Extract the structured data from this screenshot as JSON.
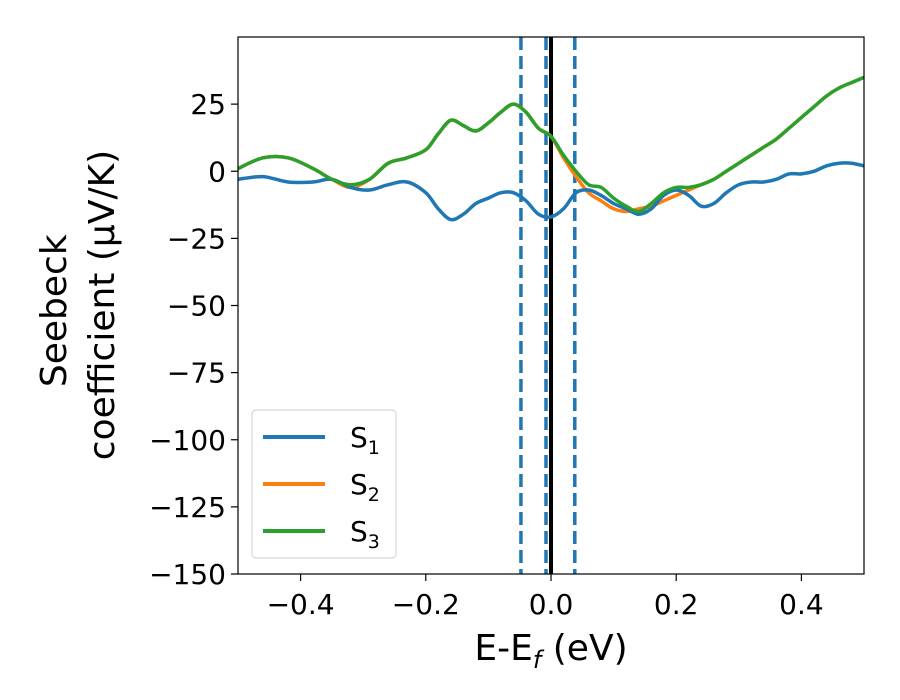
{
  "chart_data": {
    "type": "line",
    "title": "",
    "xlabel": "E-E",
    "xlabel_subscript": "f",
    "xlabel_suffix": " (eV)",
    "ylabel_line1": "Seebeck",
    "ylabel_line2": "coefficient  (μV/K)",
    "xlim": [
      -0.5,
      0.5
    ],
    "ylim": [
      -150,
      50
    ],
    "xticks": [
      -0.4,
      -0.2,
      0.0,
      0.2,
      0.4
    ],
    "xtick_labels": [
      "−0.4",
      "−0.2",
      "0.0",
      "0.2",
      "0.4"
    ],
    "yticks": [
      -150,
      -125,
      -100,
      -75,
      -50,
      -25,
      0,
      25
    ],
    "ytick_labels": [
      "−150",
      "−125",
      "−100",
      "−75",
      "−50",
      "−25",
      "0",
      "25"
    ],
    "grid": false,
    "legend_position": "lower-left",
    "vertical_lines": [
      {
        "x": -0.048,
        "style": "dashed",
        "color": "#1f77b4"
      },
      {
        "x": -0.008,
        "style": "dashed",
        "color": "#1f77b4"
      },
      {
        "x": 0.038,
        "style": "dashed",
        "color": "#1f77b4"
      },
      {
        "x": 0.0,
        "style": "solid",
        "color": "#000000"
      }
    ],
    "series": [
      {
        "name": "S",
        "subscript": "1",
        "color": "#1f77b4",
        "x": [
          -0.5,
          -0.46,
          -0.42,
          -0.38,
          -0.35,
          -0.32,
          -0.29,
          -0.26,
          -0.23,
          -0.2,
          -0.18,
          -0.16,
          -0.14,
          -0.12,
          -0.1,
          -0.08,
          -0.06,
          -0.04,
          -0.02,
          0.0,
          0.02,
          0.04,
          0.06,
          0.08,
          0.1,
          0.12,
          0.14,
          0.16,
          0.18,
          0.2,
          0.22,
          0.24,
          0.26,
          0.28,
          0.3,
          0.32,
          0.34,
          0.36,
          0.38,
          0.4,
          0.42,
          0.44,
          0.46,
          0.48,
          0.5
        ],
        "y": [
          -3,
          -2,
          -4,
          -4,
          -3,
          -6,
          -7,
          -5,
          -4,
          -8,
          -14,
          -18,
          -16,
          -12,
          -10,
          -8,
          -8,
          -11,
          -16,
          -17,
          -14,
          -8,
          -7,
          -9,
          -12,
          -14,
          -16,
          -14,
          -9,
          -7,
          -9,
          -13,
          -12,
          -8,
          -5,
          -4,
          -4,
          -3,
          -1,
          -1,
          0,
          2,
          3,
          3,
          2
        ]
      },
      {
        "name": "S",
        "subscript": "2",
        "color": "#ff7f0e",
        "x": [
          -0.5,
          -0.46,
          -0.42,
          -0.38,
          -0.35,
          -0.32,
          -0.29,
          -0.26,
          -0.23,
          -0.2,
          -0.18,
          -0.16,
          -0.14,
          -0.12,
          -0.1,
          -0.08,
          -0.06,
          -0.04,
          -0.02,
          0.0,
          0.02,
          0.04,
          0.06,
          0.08,
          0.1,
          0.12,
          0.14,
          0.16,
          0.18,
          0.2,
          0.22,
          0.24,
          0.26,
          0.28,
          0.3,
          0.32,
          0.34,
          0.36,
          0.38,
          0.4,
          0.42,
          0.44,
          0.46,
          0.48,
          0.5
        ],
        "y": [
          1,
          5,
          5,
          1,
          -3,
          -6,
          -3,
          3,
          5,
          8,
          14,
          19,
          17,
          15,
          18,
          22,
          25,
          22,
          16,
          13,
          5,
          -2,
          -8,
          -11,
          -14,
          -15,
          -14,
          -13,
          -11,
          -9,
          -7,
          -5,
          -3,
          0,
          3,
          6,
          9,
          12,
          16,
          20,
          24,
          28,
          31,
          33,
          35
        ]
      },
      {
        "name": "S",
        "subscript": "3",
        "color": "#2ca02c",
        "x": [
          -0.5,
          -0.46,
          -0.42,
          -0.38,
          -0.35,
          -0.32,
          -0.29,
          -0.26,
          -0.23,
          -0.2,
          -0.18,
          -0.16,
          -0.14,
          -0.12,
          -0.1,
          -0.08,
          -0.06,
          -0.04,
          -0.02,
          0.0,
          0.02,
          0.04,
          0.06,
          0.08,
          0.1,
          0.12,
          0.14,
          0.16,
          0.18,
          0.2,
          0.22,
          0.24,
          0.26,
          0.28,
          0.3,
          0.32,
          0.34,
          0.36,
          0.38,
          0.4,
          0.42,
          0.44,
          0.46,
          0.48,
          0.5
        ],
        "y": [
          1,
          5,
          5,
          1,
          -3,
          -5,
          -3,
          3,
          5,
          8,
          14,
          19,
          17,
          15,
          18,
          22,
          25,
          22,
          16,
          13,
          6,
          0,
          -5,
          -6,
          -10,
          -13,
          -15,
          -12,
          -8,
          -6,
          -6,
          -5,
          -3,
          0,
          3,
          6,
          9,
          12,
          16,
          20,
          24,
          28,
          31,
          33,
          35
        ]
      }
    ]
  }
}
